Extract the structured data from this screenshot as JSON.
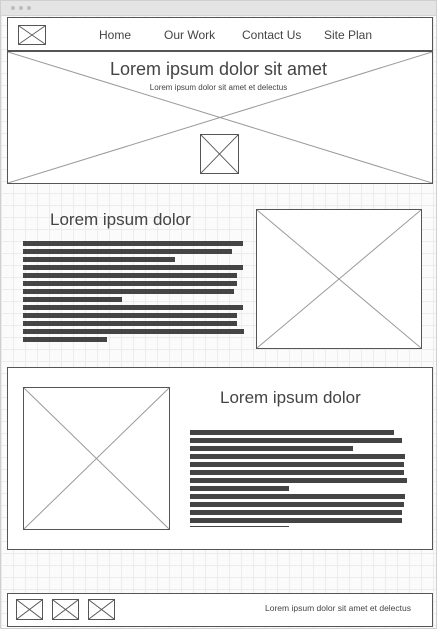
{
  "nav": {
    "items": [
      "Home",
      "Our Work",
      "Contact Us",
      "Site Plan"
    ]
  },
  "hero": {
    "title": "Lorem ipsum dolor sit amet",
    "subtitle": "Lorem ipsum dolor sit amet et delectus"
  },
  "section1": {
    "heading": "Lorem ipsum dolor"
  },
  "section2": {
    "heading": "Lorem ipsum dolor"
  },
  "footer": {
    "text": "Lorem ipsum dolor sit amet et delectus"
  },
  "colors": {
    "stroke": "#444444",
    "grid": "#ececec",
    "chrome": "#e4e4e4"
  },
  "icons": {
    "placeholder": "image-placeholder-icon"
  }
}
